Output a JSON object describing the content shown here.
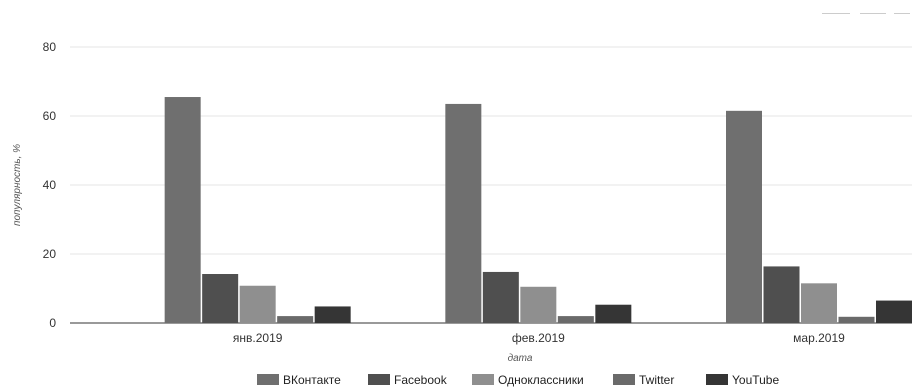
{
  "chart_data": {
    "type": "bar",
    "title": "",
    "xlabel": "дата",
    "ylabel": "популярность, %",
    "ylim": [
      0,
      80
    ],
    "yticks": [
      0,
      20,
      40,
      60,
      80
    ],
    "grid": true,
    "legend_position": "bottom",
    "categories": [
      "янв.2019",
      "фев.2019",
      "мар.2019"
    ],
    "series": [
      {
        "name": "ВКонтакте",
        "color": "#6f6f6f",
        "values": [
          65.5,
          63.5,
          61.5
        ]
      },
      {
        "name": "Facebook",
        "color": "#4f4f4f",
        "values": [
          14.2,
          14.8,
          16.4
        ]
      },
      {
        "name": "Одноклассники",
        "color": "#8f8f8f",
        "values": [
          10.8,
          10.5,
          11.5
        ]
      },
      {
        "name": "Twitter",
        "color": "#6a6a6a",
        "values": [
          2.0,
          2.0,
          1.8
        ]
      },
      {
        "name": "YouTube",
        "color": "#353535",
        "values": [
          4.8,
          5.3,
          6.5
        ]
      }
    ]
  }
}
